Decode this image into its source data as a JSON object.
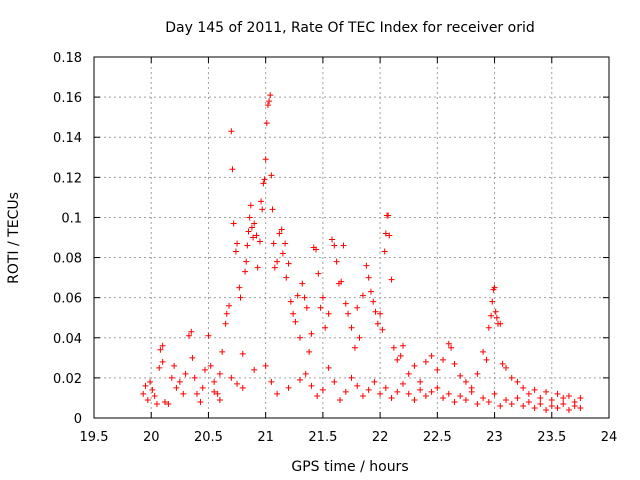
{
  "chart_data": {
    "type": "scatter",
    "title": "Day 145 of 2011, Rate Of TEC Index for receiver orid",
    "xlabel": "GPS time / hours",
    "ylabel": "ROTI / TECUs",
    "xlim": [
      19.5,
      24
    ],
    "ylim": [
      0,
      0.18
    ],
    "xticks": [
      19.5,
      20,
      20.5,
      21,
      21.5,
      22,
      22.5,
      23,
      23.5,
      24
    ],
    "xtick_labels": [
      "19.5",
      "20",
      "20.5",
      "21",
      "21.5",
      "22",
      "22.5",
      "23",
      "23.5",
      "24"
    ],
    "yticks": [
      0,
      0.02,
      0.04,
      0.06,
      0.08,
      0.1,
      0.12,
      0.14,
      0.16,
      0.18
    ],
    "ytick_labels": [
      "0",
      "0.02",
      "0.04",
      "0.06",
      "0.08",
      "0.1",
      "0.12",
      "0.14",
      "0.16",
      "0.18"
    ],
    "grid": true,
    "marker": "+",
    "series": [
      {
        "name": "ROTI",
        "color": "#ff0000",
        "points": [
          [
            19.93,
            0.012
          ],
          [
            19.95,
            0.016
          ],
          [
            19.97,
            0.009
          ],
          [
            19.99,
            0.018
          ],
          [
            20.01,
            0.014
          ],
          [
            20.03,
            0.011
          ],
          [
            20.05,
            0.007
          ],
          [
            20.07,
            0.025
          ],
          [
            20.08,
            0.034
          ],
          [
            20.1,
            0.036
          ],
          [
            20.1,
            0.028
          ],
          [
            20.12,
            0.008
          ],
          [
            20.15,
            0.007
          ],
          [
            20.18,
            0.02
          ],
          [
            20.2,
            0.026
          ],
          [
            20.22,
            0.015
          ],
          [
            20.25,
            0.018
          ],
          [
            20.28,
            0.012
          ],
          [
            20.3,
            0.022
          ],
          [
            20.33,
            0.041
          ],
          [
            20.35,
            0.043
          ],
          [
            20.36,
            0.03
          ],
          [
            20.38,
            0.02
          ],
          [
            20.4,
            0.012
          ],
          [
            20.43,
            0.008
          ],
          [
            20.45,
            0.015
          ],
          [
            20.47,
            0.024
          ],
          [
            20.5,
            0.041
          ],
          [
            20.52,
            0.026
          ],
          [
            20.55,
            0.018
          ],
          [
            20.58,
            0.012
          ],
          [
            20.6,
            0.022
          ],
          [
            20.62,
            0.033
          ],
          [
            20.65,
            0.047
          ],
          [
            20.66,
            0.052
          ],
          [
            20.68,
            0.056
          ],
          [
            20.7,
            0.143
          ],
          [
            20.71,
            0.124
          ],
          [
            20.72,
            0.097
          ],
          [
            20.74,
            0.083
          ],
          [
            20.75,
            0.087
          ],
          [
            20.77,
            0.065
          ],
          [
            20.78,
            0.06
          ],
          [
            20.8,
            0.032
          ],
          [
            20.82,
            0.073
          ],
          [
            20.83,
            0.078
          ],
          [
            20.84,
            0.086
          ],
          [
            20.85,
            0.093
          ],
          [
            20.86,
            0.1
          ],
          [
            20.87,
            0.106
          ],
          [
            20.88,
            0.095
          ],
          [
            20.89,
            0.09
          ],
          [
            20.9,
            0.097
          ],
          [
            20.92,
            0.091
          ],
          [
            20.93,
            0.075
          ],
          [
            20.95,
            0.088
          ],
          [
            20.96,
            0.108
          ],
          [
            20.97,
            0.104
          ],
          [
            20.98,
            0.117
          ],
          [
            20.99,
            0.119
          ],
          [
            21.0,
            0.129
          ],
          [
            21.01,
            0.147
          ],
          [
            21.02,
            0.156
          ],
          [
            21.03,
            0.158
          ],
          [
            21.04,
            0.161
          ],
          [
            21.05,
            0.121
          ],
          [
            21.06,
            0.104
          ],
          [
            21.07,
            0.087
          ],
          [
            21.08,
            0.075
          ],
          [
            21.1,
            0.078
          ],
          [
            21.12,
            0.092
          ],
          [
            21.14,
            0.094
          ],
          [
            21.15,
            0.082
          ],
          [
            21.17,
            0.087
          ],
          [
            21.18,
            0.07
          ],
          [
            21.2,
            0.077
          ],
          [
            21.22,
            0.058
          ],
          [
            21.24,
            0.052
          ],
          [
            21.26,
            0.048
          ],
          [
            21.28,
            0.061
          ],
          [
            21.3,
            0.04
          ],
          [
            21.32,
            0.067
          ],
          [
            21.34,
            0.06
          ],
          [
            21.36,
            0.055
          ],
          [
            21.38,
            0.033
          ],
          [
            21.4,
            0.042
          ],
          [
            21.42,
            0.085
          ],
          [
            21.44,
            0.084
          ],
          [
            21.46,
            0.072
          ],
          [
            21.48,
            0.055
          ],
          [
            21.5,
            0.06
          ],
          [
            21.52,
            0.045
          ],
          [
            21.55,
            0.052
          ],
          [
            21.58,
            0.089
          ],
          [
            21.6,
            0.086
          ],
          [
            21.62,
            0.078
          ],
          [
            21.64,
            0.067
          ],
          [
            21.66,
            0.068
          ],
          [
            21.68,
            0.086
          ],
          [
            21.7,
            0.057
          ],
          [
            21.72,
            0.052
          ],
          [
            21.75,
            0.045
          ],
          [
            21.78,
            0.035
          ],
          [
            21.8,
            0.055
          ],
          [
            21.82,
            0.04
          ],
          [
            21.85,
            0.061
          ],
          [
            21.88,
            0.076
          ],
          [
            21.9,
            0.07
          ],
          [
            21.92,
            0.063
          ],
          [
            21.94,
            0.058
          ],
          [
            21.96,
            0.053
          ],
          [
            21.98,
            0.047
          ],
          [
            22.0,
            0.052
          ],
          [
            22.02,
            0.044
          ],
          [
            22.04,
            0.083
          ],
          [
            22.05,
            0.092
          ],
          [
            22.06,
            0.101
          ],
          [
            22.07,
            0.101
          ],
          [
            22.08,
            0.091
          ],
          [
            22.1,
            0.069
          ],
          [
            22.12,
            0.035
          ],
          [
            22.15,
            0.029
          ],
          [
            22.18,
            0.031
          ],
          [
            22.2,
            0.036
          ],
          [
            22.25,
            0.022
          ],
          [
            22.3,
            0.026
          ],
          [
            22.35,
            0.018
          ],
          [
            22.4,
            0.028
          ],
          [
            22.45,
            0.031
          ],
          [
            22.5,
            0.024
          ],
          [
            22.55,
            0.029
          ],
          [
            22.6,
            0.037
          ],
          [
            22.62,
            0.035
          ],
          [
            22.65,
            0.027
          ],
          [
            22.7,
            0.021
          ],
          [
            22.75,
            0.018
          ],
          [
            22.8,
            0.015
          ],
          [
            22.85,
            0.022
          ],
          [
            22.9,
            0.033
          ],
          [
            22.93,
            0.029
          ],
          [
            22.95,
            0.045
          ],
          [
            22.97,
            0.051
          ],
          [
            22.98,
            0.058
          ],
          [
            22.99,
            0.064
          ],
          [
            23.0,
            0.065
          ],
          [
            23.01,
            0.053
          ],
          [
            23.02,
            0.05
          ],
          [
            23.03,
            0.047
          ],
          [
            23.05,
            0.047
          ],
          [
            23.07,
            0.027
          ],
          [
            23.1,
            0.025
          ],
          [
            23.15,
            0.02
          ],
          [
            23.2,
            0.018
          ],
          [
            23.25,
            0.015
          ],
          [
            23.3,
            0.012
          ],
          [
            23.35,
            0.014
          ],
          [
            23.4,
            0.01
          ],
          [
            23.45,
            0.013
          ],
          [
            23.5,
            0.009
          ],
          [
            23.55,
            0.012
          ],
          [
            23.6,
            0.01
          ],
          [
            23.65,
            0.011
          ],
          [
            23.7,
            0.008
          ],
          [
            23.75,
            0.01
          ],
          [
            20.55,
            0.013
          ],
          [
            20.6,
            0.009
          ],
          [
            20.7,
            0.02
          ],
          [
            20.75,
            0.017
          ],
          [
            20.8,
            0.015
          ],
          [
            20.9,
            0.024
          ],
          [
            21.0,
            0.026
          ],
          [
            21.05,
            0.018
          ],
          [
            21.1,
            0.012
          ],
          [
            21.2,
            0.015
          ],
          [
            21.3,
            0.019
          ],
          [
            21.35,
            0.022
          ],
          [
            21.4,
            0.016
          ],
          [
            21.45,
            0.011
          ],
          [
            21.5,
            0.014
          ],
          [
            21.55,
            0.025
          ],
          [
            21.6,
            0.018
          ],
          [
            21.65,
            0.009
          ],
          [
            21.7,
            0.013
          ],
          [
            21.75,
            0.02
          ],
          [
            21.8,
            0.016
          ],
          [
            21.85,
            0.011
          ],
          [
            21.9,
            0.014
          ],
          [
            21.95,
            0.018
          ],
          [
            22.0,
            0.012
          ],
          [
            22.05,
            0.015
          ],
          [
            22.1,
            0.01
          ],
          [
            22.15,
            0.013
          ],
          [
            22.2,
            0.017
          ],
          [
            22.25,
            0.012
          ],
          [
            22.3,
            0.009
          ],
          [
            22.35,
            0.014
          ],
          [
            22.4,
            0.011
          ],
          [
            22.45,
            0.013
          ],
          [
            22.5,
            0.015
          ],
          [
            22.55,
            0.01
          ],
          [
            22.6,
            0.012
          ],
          [
            22.65,
            0.008
          ],
          [
            22.7,
            0.011
          ],
          [
            22.75,
            0.009
          ],
          [
            22.8,
            0.013
          ],
          [
            22.85,
            0.007
          ],
          [
            22.9,
            0.01
          ],
          [
            22.95,
            0.008
          ],
          [
            23.0,
            0.012
          ],
          [
            23.05,
            0.006
          ],
          [
            23.1,
            0.009
          ],
          [
            23.15,
            0.007
          ],
          [
            23.2,
            0.01
          ],
          [
            23.25,
            0.006
          ],
          [
            23.3,
            0.008
          ],
          [
            23.35,
            0.005
          ],
          [
            23.4,
            0.007
          ],
          [
            23.45,
            0.004
          ],
          [
            23.5,
            0.006
          ],
          [
            23.55,
            0.005
          ],
          [
            23.6,
            0.007
          ],
          [
            23.65,
            0.004
          ],
          [
            23.7,
            0.006
          ],
          [
            23.75,
            0.005
          ]
        ]
      }
    ]
  }
}
